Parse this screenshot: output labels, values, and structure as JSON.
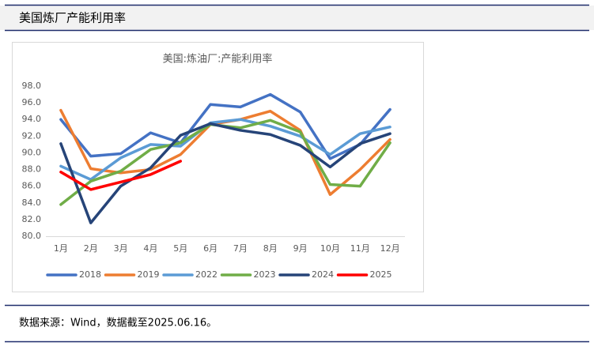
{
  "header": {
    "title": "美国炼厂产能利用率"
  },
  "footer": {
    "source": "数据来源：Wind，数据截至2025.06.16。"
  },
  "chart_data": {
    "type": "line",
    "title": "美国:炼油厂:产能利用率",
    "categories": [
      "1月",
      "2月",
      "3月",
      "4月",
      "5月",
      "6月",
      "7月",
      "8月",
      "9月",
      "10月",
      "11月",
      "12月"
    ],
    "series": [
      {
        "name": "2018",
        "color": "#4472c4",
        "values": [
          94.0,
          89.6,
          89.9,
          92.4,
          91.2,
          95.8,
          95.5,
          97.0,
          94.9,
          89.3,
          91.0,
          95.2
        ]
      },
      {
        "name": "2019",
        "color": "#ed7d31",
        "values": [
          95.1,
          88.1,
          87.6,
          88.0,
          89.8,
          93.4,
          94.0,
          95.0,
          92.7,
          85.0,
          88.0,
          91.6
        ]
      },
      {
        "name": "2022",
        "color": "#5b9bd5",
        "values": [
          88.4,
          86.8,
          89.4,
          91.0,
          90.8,
          93.6,
          94.0,
          93.2,
          92.0,
          89.8,
          92.3,
          93.1
        ]
      },
      {
        "name": "2023",
        "color": "#70ad47",
        "values": [
          83.8,
          86.6,
          87.8,
          90.4,
          91.2,
          93.4,
          93.0,
          93.9,
          92.5,
          86.2,
          86.0,
          91.2
        ]
      },
      {
        "name": "2024",
        "color": "#264478",
        "values": [
          91.1,
          81.6,
          86.0,
          88.2,
          92.1,
          93.5,
          92.7,
          92.2,
          90.9,
          88.3,
          91.1,
          92.3
        ]
      },
      {
        "name": "2025",
        "color": "#ff0000",
        "values": [
          87.7,
          85.6,
          86.5,
          87.4,
          89.0,
          null,
          null,
          null,
          null,
          null,
          null,
          null
        ]
      }
    ],
    "ylim": [
      80,
      98
    ],
    "yticks": [
      {
        "value": 80,
        "label": "80.0"
      },
      {
        "value": 82,
        "label": "82.0"
      },
      {
        "value": 84,
        "label": "84.0"
      },
      {
        "value": 86,
        "label": "86.0"
      },
      {
        "value": 88,
        "label": "88.0"
      },
      {
        "value": 90,
        "label": "90.0"
      },
      {
        "value": 92,
        "label": "92.0"
      },
      {
        "value": 94,
        "label": "94.0"
      },
      {
        "value": 96,
        "label": "96.0"
      },
      {
        "value": 98,
        "label": "98.0"
      }
    ],
    "grid": false,
    "legend": "bottom"
  }
}
